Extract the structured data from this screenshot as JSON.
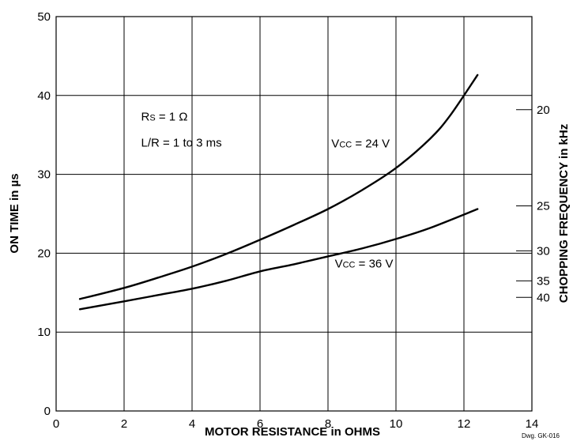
{
  "chart_data": {
    "type": "line",
    "xlabel": "MOTOR RESISTANCE in OHMS",
    "ylabel": "ON TIME in µs",
    "y2label": "CHOPPING FREQUENCY in kHz",
    "xlim": [
      0,
      14
    ],
    "ylim": [
      0,
      50
    ],
    "x_ticks": [
      "0",
      "2",
      "4",
      "6",
      "8",
      "10",
      "12",
      "14"
    ],
    "y_ticks": [
      "0",
      "10",
      "20",
      "30",
      "40",
      "50"
    ],
    "y2_ticks": [
      {
        "label": "20",
        "on_time": 38.2
      },
      {
        "label": "25",
        "on_time": 26.0
      },
      {
        "label": "30",
        "on_time": 20.3
      },
      {
        "label": "35",
        "on_time": 16.5
      },
      {
        "label": "40",
        "on_time": 14.4
      }
    ],
    "grid": true,
    "series": [
      {
        "name": "Vcc = 24 V",
        "x": [
          0.7,
          2,
          3,
          4,
          5,
          6,
          7,
          8,
          9,
          10,
          11,
          11.6,
          12.4
        ],
        "y": [
          14.2,
          15.6,
          16.9,
          18.3,
          19.9,
          21.7,
          23.6,
          25.6,
          28.0,
          30.8,
          34.5,
          37.5,
          42.6
        ]
      },
      {
        "name": "Vcc = 36 V",
        "x": [
          0.7,
          2,
          3,
          4,
          5,
          6,
          7,
          8,
          9,
          10,
          11,
          12.4
        ],
        "y": [
          12.9,
          13.9,
          14.7,
          15.5,
          16.5,
          17.7,
          18.6,
          19.6,
          20.6,
          21.8,
          23.2,
          25.6
        ]
      }
    ],
    "annotations": [
      {
        "text": "Rs = 1 Ω",
        "main": "R",
        "sub": "S",
        "rest": " = 1 Ω",
        "x": 2.5,
        "y": 36.8
      },
      {
        "text": "L/R = 1 to 3 ms",
        "x": 2.5,
        "y": 33.5
      },
      {
        "text": "Vcc = 24 V",
        "main": "V",
        "sub": "CC",
        "rest": " = 24 V",
        "x": 8.1,
        "y": 33.4
      },
      {
        "text": "Vcc = 36 V",
        "main": "V",
        "sub": "CC",
        "rest": " = 36 V",
        "x": 8.2,
        "y": 18.2
      }
    ],
    "footnote": "Dwg. GK-016"
  }
}
